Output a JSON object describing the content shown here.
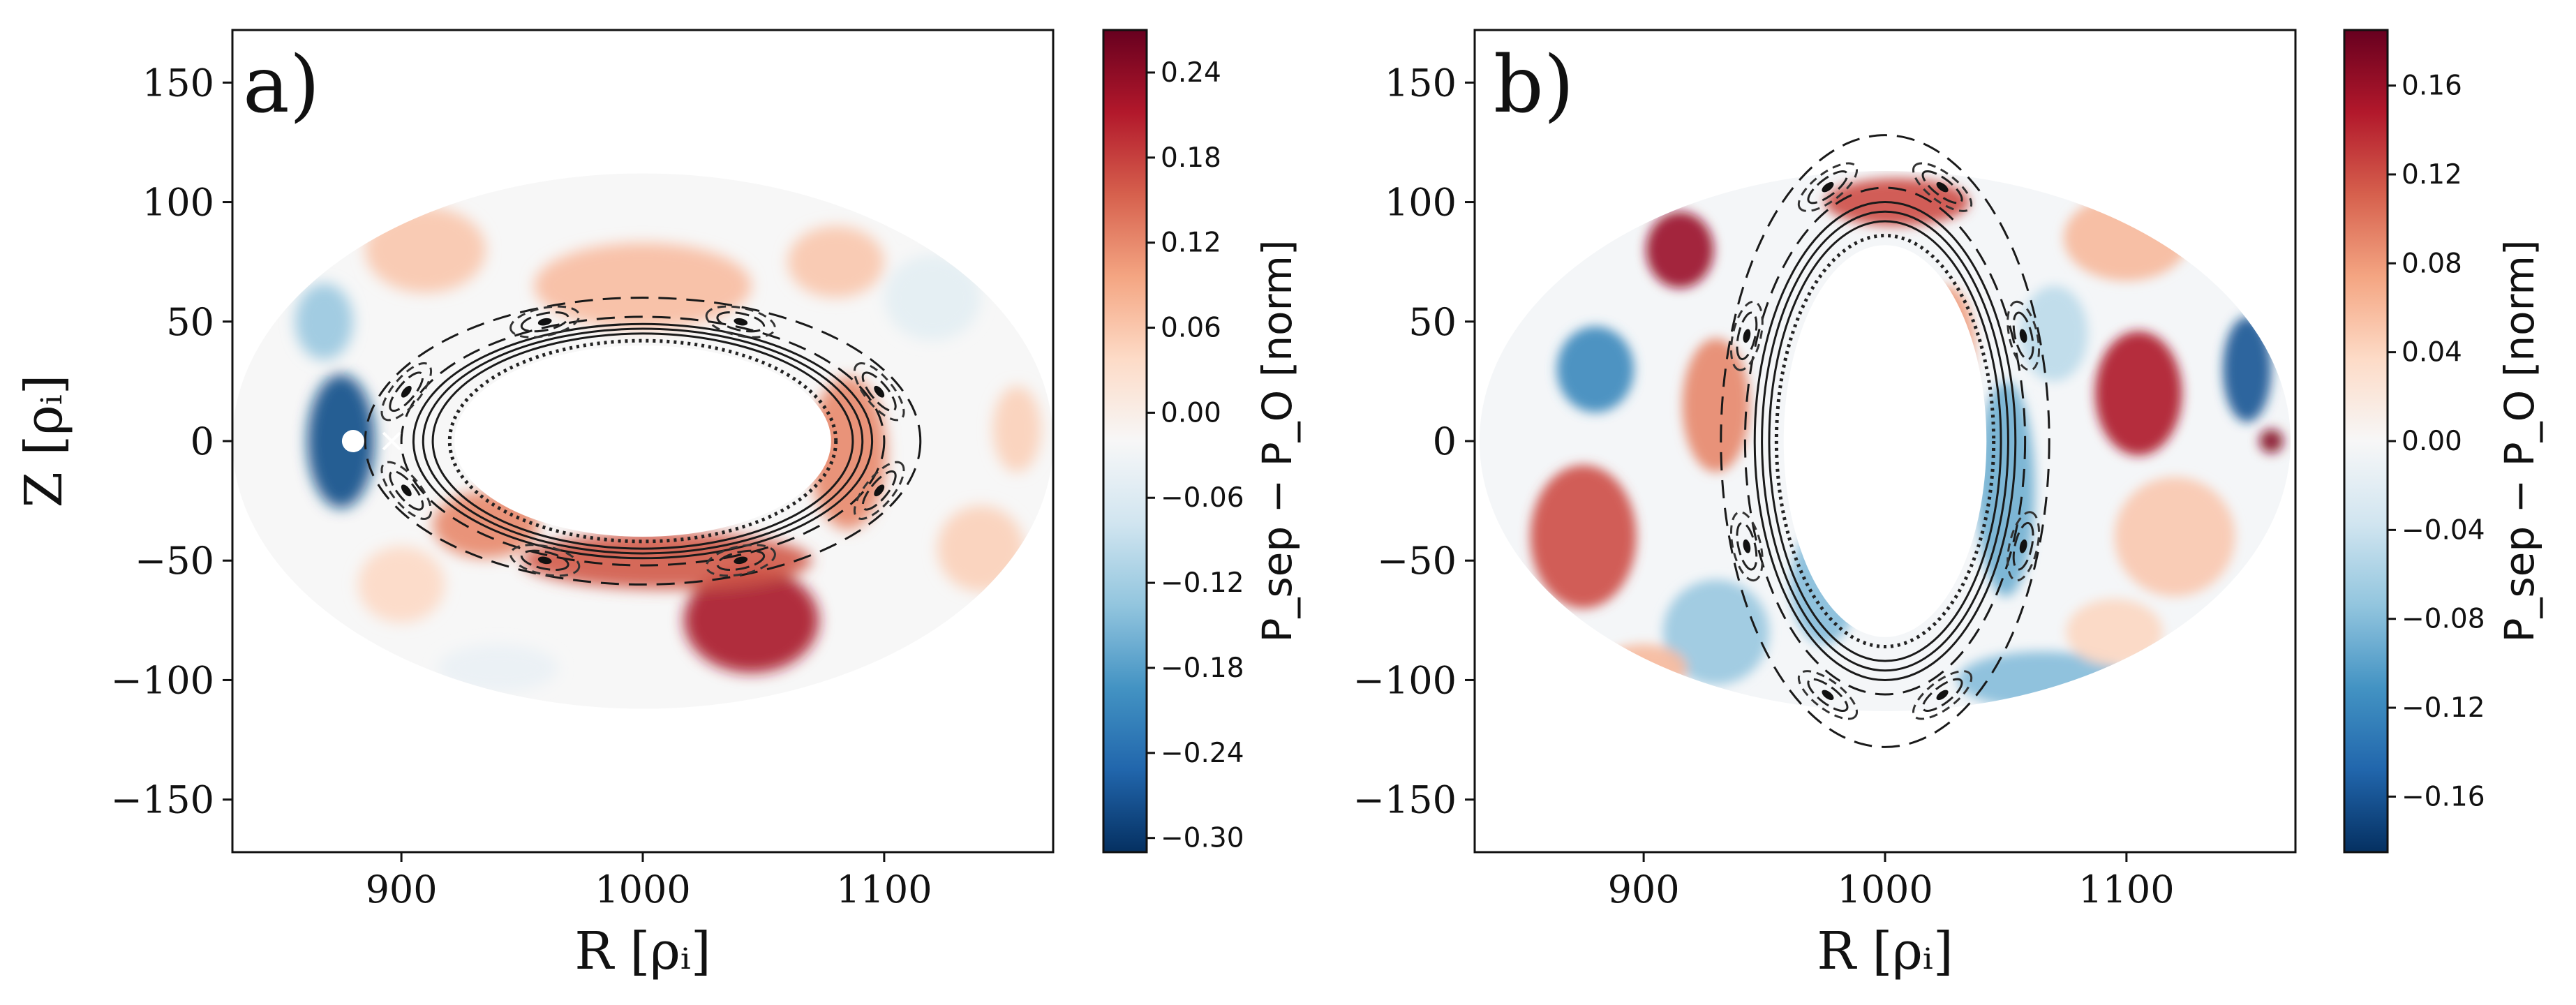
{
  "chart_data": [
    {
      "type": "heatmap",
      "panel_label": "a)",
      "xlabel": "R [ρᵢ]",
      "ylabel": "Z [ρᵢ]",
      "xlim": [
        830,
        1170
      ],
      "ylim": [
        -172,
        172
      ],
      "xticks": [
        900,
        1000,
        1100
      ],
      "xtick_labels": [
        "900",
        "1000",
        "1100"
      ],
      "yticks": [
        150,
        100,
        50,
        0,
        -50,
        -100,
        -150
      ],
      "ytick_labels": [
        "150",
        "100",
        "50",
        "0",
        "−50",
        "−100",
        "−150"
      ],
      "domain": {
        "center_R": 1000,
        "center_Z": 0,
        "semi_axis_R": 170,
        "semi_axis_Z": 112
      },
      "hole": {
        "center_R": 1000,
        "center_Z": 0,
        "semi_axis_R": 78,
        "semi_axis_Z": 40
      },
      "colorbar": {
        "label": "P_sep − P_O  [norm]",
        "range": [
          -0.31,
          0.27
        ],
        "ticks": [
          0.24,
          0.18,
          0.12,
          0.06,
          0.0,
          -0.06,
          -0.12,
          -0.18,
          -0.24,
          -0.3
        ],
        "tick_labels": [
          "0.24",
          "0.18",
          "0.12",
          "0.06",
          "0.00",
          "−0.06",
          "−0.12",
          "−0.18",
          "−0.24",
          "−0.30"
        ]
      },
      "blobs": [
        {
          "R": 875,
          "Z": 0,
          "sR": 14,
          "sZ": 28,
          "v": -0.28
        },
        {
          "R": 868,
          "Z": 50,
          "sR": 12,
          "sZ": 16,
          "v": -0.13
        },
        {
          "R": 1045,
          "Z": -75,
          "sR": 28,
          "sZ": 22,
          "v": 0.22
        },
        {
          "R": 1010,
          "Z": -50,
          "sR": 60,
          "sZ": 12,
          "v": 0.16
        },
        {
          "R": 935,
          "Z": -35,
          "sR": 22,
          "sZ": 14,
          "v": 0.12
        },
        {
          "R": 1000,
          "Z": 65,
          "sR": 45,
          "sZ": 18,
          "v": 0.07
        },
        {
          "R": 1085,
          "Z": -5,
          "sR": 16,
          "sZ": 32,
          "v": 0.12
        },
        {
          "R": 910,
          "Z": 80,
          "sR": 25,
          "sZ": 18,
          "v": 0.06
        },
        {
          "R": 1120,
          "Z": 60,
          "sR": 20,
          "sZ": 18,
          "v": -0.05
        },
        {
          "R": 1155,
          "Z": 5,
          "sR": 10,
          "sZ": 18,
          "v": 0.05
        },
        {
          "R": 1080,
          "Z": 75,
          "sR": 20,
          "sZ": 15,
          "v": 0.06
        },
        {
          "R": 940,
          "Z": -95,
          "sR": 25,
          "sZ": 10,
          "v": -0.04
        },
        {
          "R": 1140,
          "Z": -45,
          "sR": 18,
          "sZ": 18,
          "v": 0.05
        },
        {
          "R": 900,
          "Z": -60,
          "sR": 18,
          "sZ": 16,
          "v": 0.04
        }
      ],
      "x_point": {
        "R": 896,
        "Z": 0
      },
      "o_point": {
        "R": 880,
        "Z": 0
      },
      "island_count": 8,
      "island_chain_center": {
        "R": 1000,
        "Z": 0,
        "semi_axis_R": 106,
        "semi_axis_Z": 54
      },
      "flux_surfaces": [
        {
          "aR": 80,
          "aZ": 42,
          "style": "dotted"
        },
        {
          "aR": 87,
          "aZ": 45,
          "style": "solid"
        },
        {
          "aR": 91,
          "aZ": 47,
          "style": "solid"
        },
        {
          "aR": 95,
          "aZ": 49,
          "style": "solid"
        },
        {
          "aR": 100,
          "aZ": 52,
          "style": "dashed"
        },
        {
          "aR": 115,
          "aZ": 60,
          "style": "dashed"
        }
      ]
    },
    {
      "type": "heatmap",
      "panel_label": "b)",
      "xlabel": "R [ρᵢ]",
      "ylabel": "",
      "xlim": [
        830,
        1170
      ],
      "ylim": [
        -172,
        172
      ],
      "xticks": [
        900,
        1000,
        1100
      ],
      "xtick_labels": [
        "900",
        "1000",
        "1100"
      ],
      "yticks": [
        150,
        100,
        50,
        0,
        -50,
        -100,
        -150
      ],
      "ytick_labels": [
        "150",
        "100",
        "50",
        "0",
        "−50",
        "−100",
        "−150"
      ],
      "domain": {
        "center_R": 1000,
        "center_Z": 0,
        "semi_axis_R": 168,
        "semi_axis_Z": 113
      },
      "hole": {
        "center_R": 1000,
        "center_Z": 0,
        "semi_axis_R": 42,
        "semi_axis_Z": 82
      },
      "colorbar": {
        "label": "P_sep − P_O  [norm]",
        "range": [
          -0.185,
          0.185
        ],
        "ticks": [
          0.16,
          0.12,
          0.08,
          0.04,
          0.0,
          -0.04,
          -0.08,
          -0.12,
          -0.16
        ],
        "tick_labels": [
          "0.16",
          "0.12",
          "0.08",
          "0.04",
          "0.00",
          "−0.04",
          "−0.08",
          "−0.12",
          "−0.16"
        ]
      },
      "blobs": [
        {
          "R": 915,
          "Z": 80,
          "sR": 14,
          "sZ": 16,
          "v": 0.16
        },
        {
          "R": 1105,
          "Z": 20,
          "sR": 18,
          "sZ": 26,
          "v": 0.15
        },
        {
          "R": 930,
          "Z": 15,
          "sR": 14,
          "sZ": 28,
          "v": 0.09
        },
        {
          "R": 875,
          "Z": -40,
          "sR": 22,
          "sZ": 30,
          "v": 0.12
        },
        {
          "R": 1005,
          "Z": 100,
          "sR": 30,
          "sZ": 10,
          "v": 0.12
        },
        {
          "R": 1100,
          "Z": 85,
          "sR": 26,
          "sZ": 18,
          "v": 0.06
        },
        {
          "R": 880,
          "Z": 30,
          "sR": 16,
          "sZ": 18,
          "v": -0.12
        },
        {
          "R": 1050,
          "Z": -20,
          "sR": 12,
          "sZ": 45,
          "v": -0.09
        },
        {
          "R": 1150,
          "Z": 30,
          "sR": 10,
          "sZ": 22,
          "v": -0.16
        },
        {
          "R": 1160,
          "Z": 0,
          "sR": 5,
          "sZ": 5,
          "v": 0.17
        },
        {
          "R": 1065,
          "Z": -100,
          "sR": 35,
          "sZ": 12,
          "v": -0.08
        },
        {
          "R": 1120,
          "Z": -40,
          "sR": 25,
          "sZ": 25,
          "v": 0.05
        },
        {
          "R": 930,
          "Z": -80,
          "sR": 22,
          "sZ": 22,
          "v": -0.07
        },
        {
          "R": 900,
          "Z": -95,
          "sR": 18,
          "sZ": 10,
          "v": 0.06
        },
        {
          "R": 975,
          "Z": -60,
          "sR": 14,
          "sZ": 25,
          "v": -0.08
        },
        {
          "R": 1025,
          "Z": 40,
          "sR": 12,
          "sZ": 25,
          "v": 0.08
        },
        {
          "R": 1095,
          "Z": -80,
          "sR": 20,
          "sZ": 14,
          "v": 0.04
        },
        {
          "R": 1070,
          "Z": 45,
          "sR": 14,
          "sZ": 20,
          "v": -0.05
        }
      ],
      "island_count": 8,
      "island_chain_center": {
        "R": 1000,
        "Z": 0,
        "semi_axis_R": 62,
        "semi_axis_Z": 115
      },
      "flux_surfaces": [
        {
          "aR": 45,
          "aZ": 86,
          "style": "dotted"
        },
        {
          "aR": 48,
          "aZ": 92,
          "style": "solid"
        },
        {
          "aR": 51,
          "aZ": 96,
          "style": "solid"
        },
        {
          "aR": 54,
          "aZ": 100,
          "style": "solid"
        },
        {
          "aR": 58,
          "aZ": 106,
          "style": "dashed"
        },
        {
          "aR": 68,
          "aZ": 128,
          "style": "dashed"
        }
      ]
    }
  ]
}
